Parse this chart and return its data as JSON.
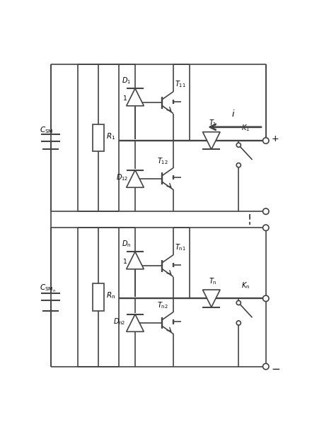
{
  "fig_width": 4.41,
  "fig_height": 6.0,
  "dpi": 100,
  "lc": "#444444",
  "lw": 1.2,
  "xlim": [
    0,
    44.1
  ],
  "ylim": [
    0,
    60.0
  ]
}
